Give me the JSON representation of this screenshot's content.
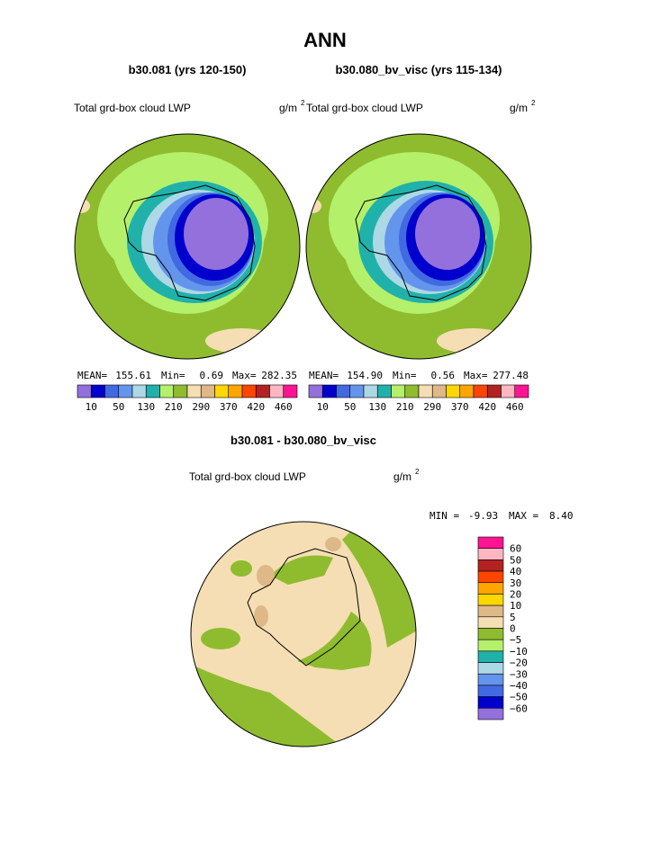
{
  "title": "ANN",
  "panels": [
    {
      "subtitle": "b30.081 (yrs 120-150)",
      "left_label": "Total grd-box cloud LWP",
      "units": "g/m",
      "units_exp": "2",
      "stats": {
        "mean_label": "MEAN=",
        "mean": "155.61",
        "min_label": "Min=",
        "min": "0.69",
        "max_label": "Max=",
        "max": "282.35"
      }
    },
    {
      "subtitle": "b30.080_bv_visc (yrs 115-134)",
      "left_label": "Total grd-box cloud LWP",
      "units": "g/m",
      "units_exp": "2",
      "stats": {
        "mean_label": "MEAN=",
        "mean": "154.90",
        "min_label": "Min=",
        "min": "0.56",
        "max_label": "Max=",
        "max": "277.48"
      }
    }
  ],
  "colorbar": {
    "labels": [
      "10",
      "50",
      "130",
      "210",
      "290",
      "370",
      "420",
      "460"
    ],
    "colors": [
      "#9370db",
      "#0000cd",
      "#4169e1",
      "#6495ed",
      "#add8e6",
      "#20b2aa",
      "#b4f06a",
      "#8fbc2f",
      "#f5deb3",
      "#deb887",
      "#ffd700",
      "#ffa500",
      "#ff4500",
      "#b22222",
      "#ffb6c1",
      "#ff1493"
    ]
  },
  "diff": {
    "subtitle": "b30.081 - b30.080_bv_visc",
    "left_label": "Total grd-box cloud LWP",
    "units": "g/m",
    "units_exp": "2",
    "min_label": "MIN =",
    "min": "-9.93",
    "max_label": "MAX =",
    "max": "8.40",
    "colorbar_labels": [
      "60",
      "50",
      "40",
      "30",
      "20",
      "10",
      "5",
      "0",
      "−5",
      "−10",
      "−20",
      "−30",
      "−40",
      "−50",
      "−60"
    ]
  }
}
